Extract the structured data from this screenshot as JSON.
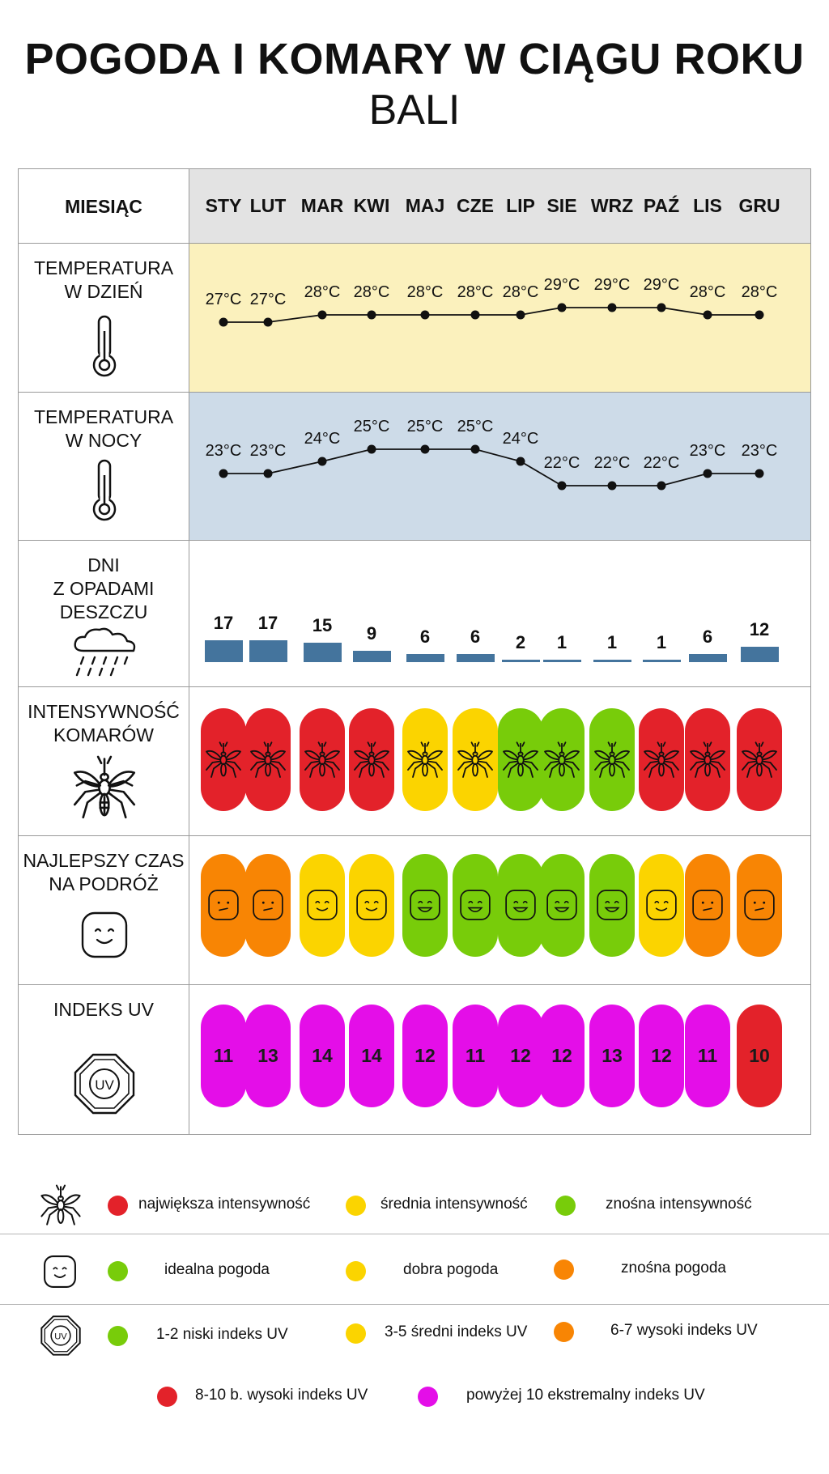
{
  "title": "POGODA I KOMARY W CIĄGU ROKU",
  "subtitle": "BALI",
  "labels": {
    "month": "MIESIĄC",
    "day_temp": "TEMPERATURA\nW DZIEŃ",
    "night_temp": "TEMPERATURA\nW NOCY",
    "rain": "DNI\nZ OPADAMI\nDESZCZU",
    "mosquito": "INTENSYWNOŚĆ\nKOMARÓW",
    "travel": "NAJLEPSZY CZAS\nNA PODRÓŻ",
    "uv": "INDEKS UV"
  },
  "colors": {
    "red": "#e3222a",
    "yellow": "#fbd400",
    "green": "#78cc0a",
    "orange": "#f88504",
    "magenta": "#e40ee8",
    "day_bg": "#fbf1bd",
    "night_bg": "#cddbe8",
    "header_bg": "#e3e3e3",
    "bar": "#44749d"
  },
  "icons": {
    "day_temp": "thermometer-icon",
    "night_temp": "thermometer-icon",
    "rain": "rain-cloud-icon",
    "mosquito": "mosquito-icon",
    "travel": "smiley-icon",
    "uv": "uv-badge-icon"
  },
  "chart_data": {
    "type": "table",
    "months": [
      "STY",
      "LUT",
      "MAR",
      "KWI",
      "MAJ",
      "CZE",
      "LIP",
      "SIE",
      "WRZ",
      "PAŹ",
      "LIS",
      "GRU"
    ],
    "day_temp": {
      "unit": "°C",
      "values": [
        27,
        27,
        28,
        28,
        28,
        28,
        28,
        29,
        29,
        29,
        28,
        28
      ],
      "labels": [
        "27°C",
        "27°C",
        "28°C",
        "28°C",
        "28°C",
        "28°C",
        "28°C",
        "29°C",
        "29°C",
        "29°C",
        "28°C",
        "28°C"
      ]
    },
    "night_temp": {
      "unit": "°C",
      "values": [
        23,
        23,
        24,
        25,
        25,
        25,
        24,
        22,
        22,
        22,
        23,
        23
      ],
      "labels": [
        "23°C",
        "23°C",
        "24°C",
        "25°C",
        "25°C",
        "25°C",
        "24°C",
        "22°C",
        "22°C",
        "22°C",
        "23°C",
        "23°C"
      ]
    },
    "rain_days": [
      "17",
      "17",
      "15",
      "9",
      "6",
      "6",
      "2",
      "1",
      "1",
      "1",
      "6",
      "12"
    ],
    "mosquito_levels": [
      "red",
      "red",
      "red",
      "red",
      "yellow",
      "yellow",
      "green",
      "green",
      "green",
      "red",
      "red",
      "red"
    ],
    "travel_levels": [
      "orange",
      "orange",
      "yellow",
      "yellow",
      "green",
      "green",
      "green",
      "green",
      "green",
      "yellow",
      "orange",
      "orange"
    ],
    "uv_values": [
      "11",
      "13",
      "14",
      "14",
      "12",
      "11",
      "12",
      "12",
      "13",
      "12",
      "11",
      "10"
    ],
    "uv_levels": [
      "magenta",
      "magenta",
      "magenta",
      "magenta",
      "magenta",
      "magenta",
      "magenta",
      "magenta",
      "magenta",
      "magenta",
      "magenta",
      "red"
    ]
  },
  "legend": {
    "mosquito": [
      {
        "color": "red",
        "text": "największa intensywność"
      },
      {
        "color": "yellow",
        "text": "średnia intensywność"
      },
      {
        "color": "green",
        "text": "znośna intensywność"
      }
    ],
    "weather": [
      {
        "color": "green",
        "text": "idealna pogoda"
      },
      {
        "color": "yellow",
        "text": "dobra pogoda"
      },
      {
        "color": "orange",
        "text": "znośna pogoda"
      }
    ],
    "uv": [
      {
        "color": "green",
        "text": "1-2 niski indeks UV"
      },
      {
        "color": "yellow",
        "text": "3-5 średni indeks UV"
      },
      {
        "color": "orange",
        "text": "6-7 wysoki indeks UV"
      },
      {
        "color": "red",
        "text": "8-10 b. wysoki indeks UV"
      },
      {
        "color": "magenta",
        "text": "powyżej 10 ekstremalny indeks UV"
      }
    ]
  }
}
